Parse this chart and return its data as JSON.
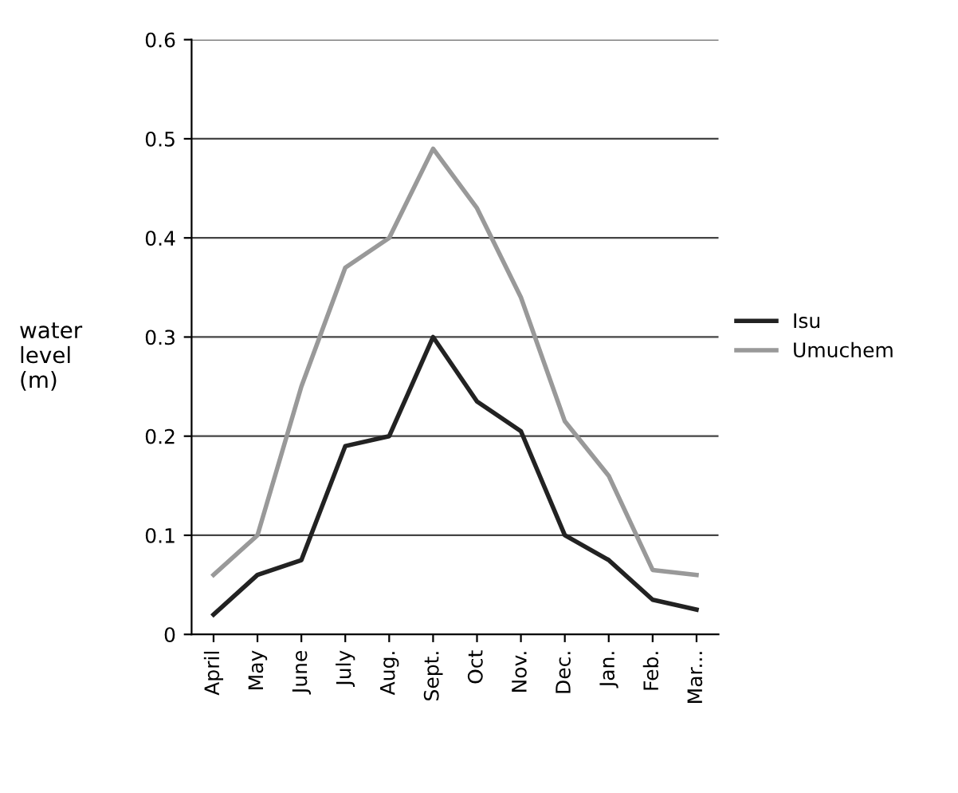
{
  "chart_data": {
    "type": "line",
    "ylabel": "water level (m)",
    "categories": [
      "April",
      "May",
      "June",
      "July",
      "Aug.",
      "Sept.",
      "Oct",
      "Nov.",
      "Dec.",
      "Jan.",
      "Feb.",
      "Mar..."
    ],
    "series": [
      {
        "name": "Isu",
        "color": "#222222",
        "values": [
          0.02,
          0.06,
          0.075,
          0.19,
          0.2,
          0.3,
          0.235,
          0.205,
          0.1,
          0.075,
          0.035,
          0.025
        ]
      },
      {
        "name": "Umuchem",
        "color": "#999999",
        "values": [
          0.06,
          0.1,
          0.25,
          0.37,
          0.4,
          0.49,
          0.43,
          0.34,
          0.215,
          0.16,
          0.065,
          0.06
        ]
      }
    ],
    "ylim": [
      0,
      0.6
    ],
    "yticks": [
      0,
      0.1,
      0.2,
      0.3,
      0.4,
      0.5,
      0.6
    ],
    "grid": "y",
    "legend": "right",
    "marker": "none",
    "line_style": "solid"
  }
}
